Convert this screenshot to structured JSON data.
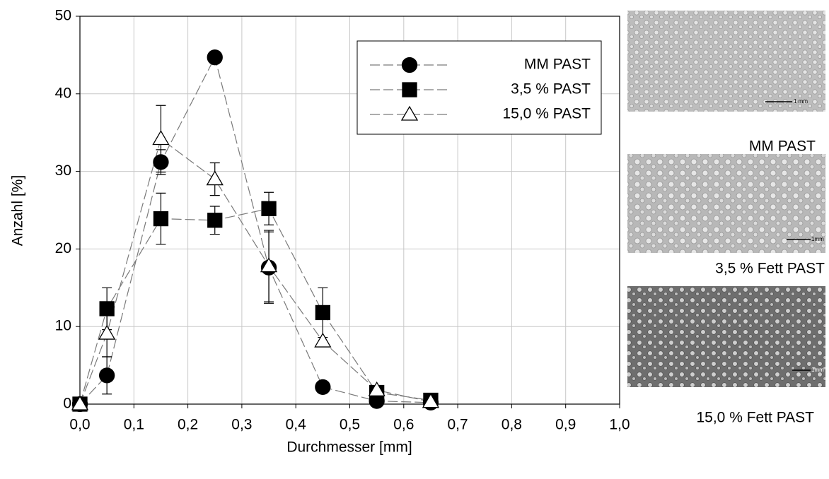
{
  "chart_data": {
    "type": "line",
    "x_label": "Durchmesser [mm]",
    "y_label": "Anzahl [%]",
    "x": [
      0,
      0.05,
      0.15,
      0.25,
      0.35,
      0.45,
      0.55,
      0.65
    ],
    "xlim": [
      0,
      1
    ],
    "ylim": [
      0,
      50
    ],
    "xticks": [
      {
        "value": 0,
        "label": "0,0"
      },
      {
        "value": 0.1,
        "label": "0,1"
      },
      {
        "value": 0.2,
        "label": "0,2"
      },
      {
        "value": 0.3,
        "label": "0,3"
      },
      {
        "value": 0.4,
        "label": "0,4"
      },
      {
        "value": 0.5,
        "label": "0,5"
      },
      {
        "value": 0.6,
        "label": "0,6"
      },
      {
        "value": 0.7,
        "label": "0,7"
      },
      {
        "value": 0.8,
        "label": "0,8"
      },
      {
        "value": 0.9,
        "label": "0,9"
      },
      {
        "value": 1,
        "label": "1,0"
      }
    ],
    "yticks": [
      0,
      10,
      20,
      30,
      40,
      50
    ],
    "grid": true,
    "legend": "upper right",
    "series": [
      {
        "name": "MM PAST",
        "color": "#000000",
        "marker": "circle",
        "values": [
          0,
          3.7,
          31.2,
          44.7,
          17.6,
          2.2,
          0.4,
          0.2
        ],
        "errors": [
          0,
          2.4,
          1.6,
          0.4,
          4.6,
          0,
          0,
          0
        ]
      },
      {
        "name": "3,5 % PAST",
        "color": "#000000",
        "marker": "square",
        "values": [
          0,
          12.3,
          23.9,
          23.7,
          25.2,
          11.8,
          1.5,
          0.5
        ],
        "errors": [
          0,
          2.7,
          3.3,
          1.8,
          2.1,
          3.2,
          0,
          0
        ]
      },
      {
        "name": "15,0 % PAST",
        "color": "#ffffff",
        "marker": "triangle",
        "values": [
          0,
          9.1,
          34.2,
          29.0,
          17.8,
          8.1,
          1.8,
          0.3
        ],
        "errors": [
          0,
          3.0,
          4.3,
          2.1,
          4.6,
          0,
          0,
          0
        ]
      }
    ]
  },
  "images": [
    {
      "caption": "MM PAST",
      "scale": "1 mm"
    },
    {
      "caption": "3,5 % Fett PAST",
      "scale": "1mm"
    },
    {
      "caption": "15,0 % Fett PAST",
      "scale": "1mm"
    }
  ]
}
